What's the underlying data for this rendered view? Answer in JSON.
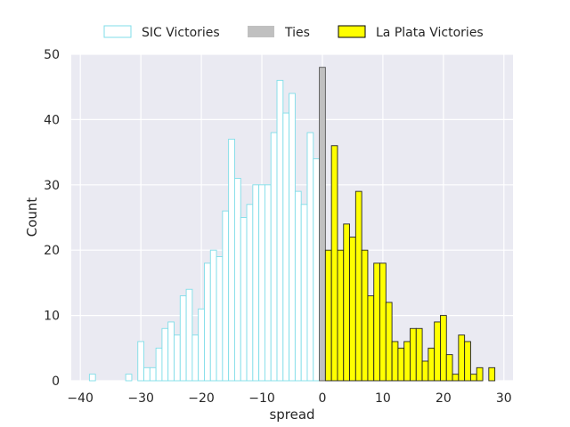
{
  "chart_data": {
    "type": "bar",
    "xlabel": "spread",
    "ylabel": "Count",
    "xlim": [
      -41.5,
      31.5
    ],
    "ylim": [
      0,
      50
    ],
    "xticks": [
      -40,
      -30,
      -20,
      -10,
      0,
      10,
      20,
      30
    ],
    "yticks": [
      0,
      10,
      20,
      30,
      40,
      50
    ],
    "grid": true,
    "legend_position": "top-center",
    "bin_width": 1,
    "series": [
      {
        "name": "SIC Victories",
        "fill": "#ffffff",
        "edge": "#7fdde8",
        "x": [
          -38,
          -37,
          -36,
          -35,
          -34,
          -33,
          -32,
          -31,
          -30,
          -29,
          -28,
          -27,
          -26,
          -25,
          -24,
          -23,
          -22,
          -21,
          -20,
          -19,
          -18,
          -17,
          -16,
          -15,
          -14,
          -13,
          -12,
          -11,
          -10,
          -9,
          -8,
          -7,
          -6,
          -5,
          -4,
          -3,
          -2,
          -1
        ],
        "values": [
          1,
          0,
          0,
          0,
          0,
          0,
          1,
          0,
          6,
          2,
          2,
          5,
          8,
          9,
          7,
          13,
          14,
          7,
          11,
          18,
          20,
          19,
          26,
          37,
          31,
          25,
          27,
          30,
          30,
          30,
          38,
          46,
          41,
          44,
          29,
          27,
          38,
          34
        ]
      },
      {
        "name": "Ties",
        "fill": "#c0c0c0",
        "edge": "#555555",
        "x": [
          0
        ],
        "values": [
          48
        ]
      },
      {
        "name": "La Plata Victories",
        "fill": "#ffff00",
        "edge": "#222222",
        "x": [
          1,
          2,
          3,
          4,
          5,
          6,
          7,
          8,
          9,
          10,
          11,
          12,
          13,
          14,
          15,
          16,
          17,
          18,
          19,
          20,
          21,
          22,
          23,
          24,
          25,
          26,
          27,
          28
        ],
        "values": [
          20,
          36,
          20,
          24,
          22,
          29,
          20,
          13,
          18,
          18,
          12,
          6,
          5,
          6,
          8,
          8,
          3,
          5,
          9,
          10,
          4,
          1,
          7,
          6,
          1,
          2,
          0,
          2
        ]
      }
    ]
  }
}
